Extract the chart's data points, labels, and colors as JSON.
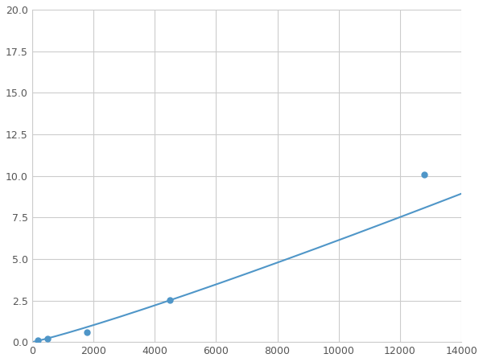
{
  "x_points": [
    200,
    500,
    1800,
    4500,
    12800
  ],
  "y_points": [
    0.1,
    0.2,
    0.6,
    2.55,
    10.1
  ],
  "line_color": "#4f96c8",
  "marker_color": "#4f96c8",
  "marker_size": 5,
  "line_width": 1.5,
  "xlim": [
    0,
    14000
  ],
  "ylim": [
    0,
    20
  ],
  "xticks": [
    0,
    2000,
    4000,
    6000,
    8000,
    10000,
    12000,
    14000
  ],
  "yticks": [
    0.0,
    2.5,
    5.0,
    7.5,
    10.0,
    12.5,
    15.0,
    17.5,
    20.0
  ],
  "grid_color": "#cccccc",
  "bg_color": "#ffffff",
  "fig_bg_color": "#ffffff"
}
